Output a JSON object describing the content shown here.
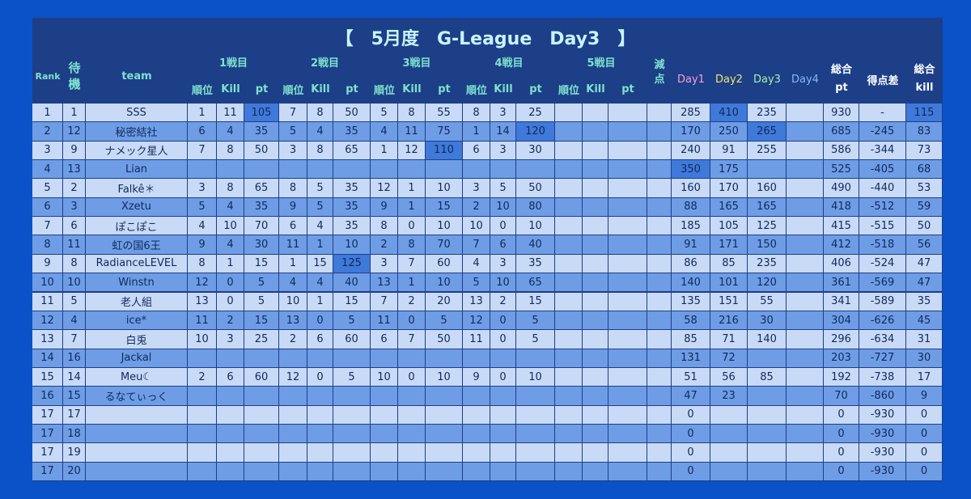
{
  "title": "【　5月度　G-League　Day3　】",
  "header": {
    "rank": "Rank",
    "wait": "待機",
    "team": "team",
    "games": [
      "1戦目",
      "2戦目",
      "3戦目",
      "4戦目",
      "5戦目"
    ],
    "sub": [
      "順位",
      "Kill",
      "pt"
    ],
    "deduction": "減点",
    "days": [
      "Day1",
      "Day2",
      "Day3",
      "Day4"
    ],
    "total_pt": [
      "総合",
      "pt"
    ],
    "diff": "得点差",
    "total_kill": [
      "総合",
      "kill"
    ]
  },
  "highlight": [
    [
      0,
      5
    ],
    [
      0,
      20
    ],
    [
      0,
      25
    ],
    [
      1,
      14
    ],
    [
      1,
      21
    ],
    [
      2,
      11
    ],
    [
      3,
      19
    ],
    [
      8,
      8
    ]
  ],
  "rows": [
    [
      1,
      1,
      "SSS",
      1,
      11,
      105,
      7,
      8,
      50,
      5,
      8,
      55,
      8,
      3,
      25,
      null,
      null,
      null,
      null,
      285,
      410,
      235,
      null,
      930,
      "-",
      115
    ],
    [
      2,
      12,
      "秘密結社",
      6,
      4,
      35,
      5,
      4,
      35,
      4,
      11,
      75,
      1,
      14,
      120,
      null,
      null,
      null,
      null,
      170,
      250,
      265,
      null,
      685,
      -245,
      83
    ],
    [
      3,
      9,
      "ナメック星人",
      7,
      8,
      50,
      3,
      8,
      65,
      1,
      12,
      110,
      6,
      3,
      30,
      null,
      null,
      null,
      null,
      240,
      91,
      255,
      null,
      586,
      -344,
      73
    ],
    [
      4,
      13,
      "Lian",
      null,
      null,
      null,
      null,
      null,
      null,
      null,
      null,
      null,
      null,
      null,
      null,
      null,
      null,
      null,
      null,
      350,
      175,
      null,
      null,
      525,
      -405,
      68
    ],
    [
      5,
      2,
      "Falkê＊",
      3,
      8,
      65,
      8,
      5,
      35,
      12,
      1,
      10,
      3,
      5,
      50,
      null,
      null,
      null,
      null,
      160,
      170,
      160,
      null,
      490,
      -440,
      53
    ],
    [
      6,
      3,
      "Xzetu",
      5,
      4,
      35,
      9,
      5,
      35,
      9,
      1,
      15,
      2,
      10,
      80,
      null,
      null,
      null,
      null,
      88,
      165,
      165,
      null,
      418,
      -512,
      59
    ],
    [
      7,
      6,
      "ぽこぽこ",
      4,
      10,
      70,
      6,
      4,
      35,
      8,
      0,
      10,
      10,
      0,
      10,
      null,
      null,
      null,
      null,
      185,
      105,
      125,
      null,
      415,
      -515,
      50
    ],
    [
      8,
      11,
      "虹の国6王",
      9,
      4,
      30,
      11,
      1,
      10,
      2,
      8,
      70,
      7,
      6,
      40,
      null,
      null,
      null,
      null,
      91,
      171,
      150,
      null,
      412,
      -518,
      56
    ],
    [
      9,
      8,
      "RadianceLEVEL",
      8,
      1,
      15,
      1,
      15,
      125,
      3,
      7,
      60,
      4,
      3,
      35,
      null,
      null,
      null,
      null,
      86,
      85,
      235,
      null,
      406,
      -524,
      47
    ],
    [
      10,
      10,
      "Winstn",
      12,
      0,
      5,
      4,
      4,
      40,
      13,
      1,
      10,
      5,
      10,
      65,
      null,
      null,
      null,
      null,
      140,
      101,
      120,
      null,
      361,
      -569,
      47
    ],
    [
      11,
      5,
      "老人組",
      13,
      0,
      5,
      10,
      1,
      15,
      7,
      2,
      20,
      13,
      2,
      15,
      null,
      null,
      null,
      null,
      135,
      151,
      55,
      null,
      341,
      -589,
      35
    ],
    [
      12,
      4,
      "ice*",
      11,
      2,
      15,
      13,
      0,
      5,
      11,
      0,
      5,
      12,
      0,
      5,
      null,
      null,
      null,
      null,
      58,
      216,
      30,
      null,
      304,
      -626,
      45
    ],
    [
      13,
      7,
      "白兎",
      10,
      3,
      25,
      2,
      6,
      60,
      6,
      7,
      50,
      11,
      0,
      5,
      null,
      null,
      null,
      null,
      85,
      71,
      140,
      null,
      296,
      -634,
      31
    ],
    [
      14,
      16,
      "Jackal",
      null,
      null,
      null,
      null,
      null,
      null,
      null,
      null,
      null,
      null,
      null,
      null,
      null,
      null,
      null,
      null,
      131,
      72,
      null,
      null,
      203,
      -727,
      30
    ],
    [
      15,
      14,
      "Meu☾",
      2,
      6,
      60,
      12,
      0,
      5,
      10,
      0,
      10,
      9,
      0,
      10,
      null,
      null,
      null,
      null,
      51,
      56,
      85,
      null,
      192,
      -738,
      17
    ],
    [
      16,
      15,
      "るなてぃっく",
      null,
      null,
      null,
      null,
      null,
      null,
      null,
      null,
      null,
      null,
      null,
      null,
      null,
      null,
      null,
      null,
      47,
      23,
      null,
      null,
      70,
      -860,
      9
    ],
    [
      17,
      17,
      null,
      null,
      null,
      null,
      null,
      null,
      null,
      null,
      null,
      null,
      null,
      null,
      null,
      null,
      null,
      null,
      null,
      0,
      null,
      null,
      null,
      0,
      -930,
      0
    ],
    [
      17,
      18,
      null,
      null,
      null,
      null,
      null,
      null,
      null,
      null,
      null,
      null,
      null,
      null,
      null,
      null,
      null,
      null,
      null,
      0,
      null,
      null,
      null,
      0,
      -930,
      0
    ],
    [
      17,
      19,
      null,
      null,
      null,
      null,
      null,
      null,
      null,
      null,
      null,
      null,
      null,
      null,
      null,
      null,
      null,
      null,
      null,
      0,
      null,
      null,
      null,
      0,
      -930,
      0
    ],
    [
      17,
      20,
      null,
      null,
      null,
      null,
      null,
      null,
      null,
      null,
      null,
      null,
      null,
      null,
      null,
      null,
      null,
      null,
      null,
      0,
      null,
      null,
      null,
      0,
      -930,
      0
    ]
  ]
}
